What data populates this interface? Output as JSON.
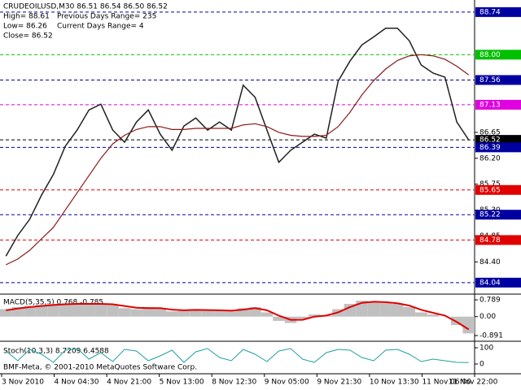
{
  "chart_data": {
    "type": "line",
    "header": {
      "symbol_line": "CRUDEOILUSD,M30  86.51 86.54 86.50 86.52",
      "high": "High= 88.61",
      "low": "Low= 86.26",
      "close": "Close= 86.52",
      "prev_range": "Previous Days Range= 235",
      "curr_range": "Current Days Range= 4"
    },
    "ylim": [
      83.84,
      88.95
    ],
    "yticks": [
      86.65,
      {
        "value": 86.2,
        "label": "86.20"
      },
      85.75,
      {
        "value": 85.3,
        "label": "85.30"
      },
      84.85,
      {
        "value": 84.4,
        "label": "84.40"
      }
    ],
    "levels": [
      {
        "value": 88.74,
        "label": "88.74",
        "color": "#0000a0"
      },
      {
        "value": 88.0,
        "label": "88.00",
        "color": "#00c000"
      },
      {
        "value": 87.56,
        "label": "87.56",
        "color": "#0000a0"
      },
      {
        "value": 87.13,
        "label": "87.13",
        "color": "#e000e0"
      },
      {
        "value": 86.52,
        "label": "86.52",
        "color": "#000000"
      },
      {
        "value": 86.39,
        "label": "86.39",
        "color": "#0000a0"
      },
      {
        "value": 85.65,
        "label": "85.65",
        "color": "#e00000"
      },
      {
        "value": 85.22,
        "label": "85.22",
        "color": "#0000a0"
      },
      {
        "value": 84.78,
        "label": "84.78",
        "color": "#e00000"
      },
      {
        "value": 84.04,
        "label": "84.04",
        "color": "#0000a0"
      }
    ],
    "series": [
      {
        "color": "#202020",
        "values": [
          84.5,
          84.86,
          85.14,
          85.56,
          85.92,
          86.41,
          86.69,
          87.04,
          87.14,
          86.69,
          86.48,
          86.83,
          87.04,
          86.62,
          86.34,
          86.76,
          86.9,
          86.69,
          86.83,
          86.69,
          87.47,
          87.26,
          86.69,
          86.13,
          86.34,
          86.48,
          86.62,
          86.55,
          87.54,
          87.89,
          88.17,
          88.31,
          88.46,
          88.46,
          88.24,
          87.82,
          87.68,
          87.61,
          86.83,
          86.52
        ]
      },
      {
        "color": "#8b1a1a",
        "values": [
          84.35,
          84.45,
          84.6,
          84.8,
          85.0,
          85.3,
          85.6,
          85.9,
          86.2,
          86.45,
          86.6,
          86.7,
          86.75,
          86.75,
          86.7,
          86.7,
          86.72,
          86.72,
          86.72,
          86.72,
          86.78,
          86.8,
          86.75,
          86.65,
          86.6,
          86.58,
          86.58,
          86.6,
          86.75,
          87.0,
          87.3,
          87.55,
          87.75,
          87.9,
          87.98,
          88.0,
          87.98,
          87.92,
          87.8,
          87.65
        ]
      }
    ],
    "macd": {
      "label": "MACD(5,35,5) 0.768 -0.785",
      "ylim": [
        -1.16,
        1.06
      ],
      "yticks": [
        0.789,
        {
          "value": 0,
          "label": "0.00"
        },
        -0.891
      ],
      "histogram": {
        "color": "#c0c0c0",
        "values": [
          0.35,
          0.45,
          0.5,
          0.55,
          0.6,
          0.62,
          0.6,
          0.6,
          0.62,
          0.55,
          0.4,
          0.35,
          0.45,
          0.4,
          0.25,
          0.3,
          0.35,
          0.3,
          0.3,
          0.25,
          0.4,
          0.45,
          0.2,
          -0.2,
          -0.3,
          -0.1,
          0.1,
          0.05,
          0.35,
          0.6,
          0.75,
          0.7,
          0.65,
          0.6,
          0.45,
          0.2,
          0.1,
          0.0,
          -0.4,
          -0.79
        ]
      },
      "signal": {
        "color": "#e00000",
        "values": [
          0.3,
          0.38,
          0.45,
          0.5,
          0.55,
          0.58,
          0.6,
          0.6,
          0.6,
          0.58,
          0.5,
          0.42,
          0.4,
          0.4,
          0.33,
          0.3,
          0.32,
          0.31,
          0.3,
          0.28,
          0.33,
          0.4,
          0.3,
          0.05,
          -0.15,
          -0.15,
          0.0,
          0.05,
          0.2,
          0.45,
          0.65,
          0.7,
          0.68,
          0.63,
          0.52,
          0.32,
          0.18,
          0.05,
          -0.25,
          -0.6
        ]
      }
    },
    "stoch": {
      "label": "Stoch(10,3,3) 8.7209 6.4588",
      "ylim": [
        0,
        100
      ],
      "yticks": [
        100,
        0
      ],
      "main": {
        "color": "#20a0a0",
        "values": [
          80,
          20,
          90,
          60,
          10,
          85,
          95,
          30,
          70,
          15,
          90,
          80,
          20,
          50,
          85,
          10,
          75,
          95,
          40,
          20,
          90,
          60,
          15,
          80,
          95,
          30,
          10,
          70,
          90,
          85,
          40,
          20,
          85,
          90,
          60,
          15,
          30,
          20,
          10,
          8.72
        ]
      }
    },
    "footer": "BMF-Meta, © 2001-2010 MetaQuotes Software Corp.",
    "time_labels": [
      "3 Nov 2010",
      "4 Nov 04:30",
      "4 Nov 21:00",
      "5 Nov 13:00",
      "8 Nov 12:30",
      "9 Nov 05:00",
      "9 Nov 21:30",
      "10 Nov 13:30",
      "11 Nov 06:00",
      "11 Nov 22:00"
    ]
  }
}
